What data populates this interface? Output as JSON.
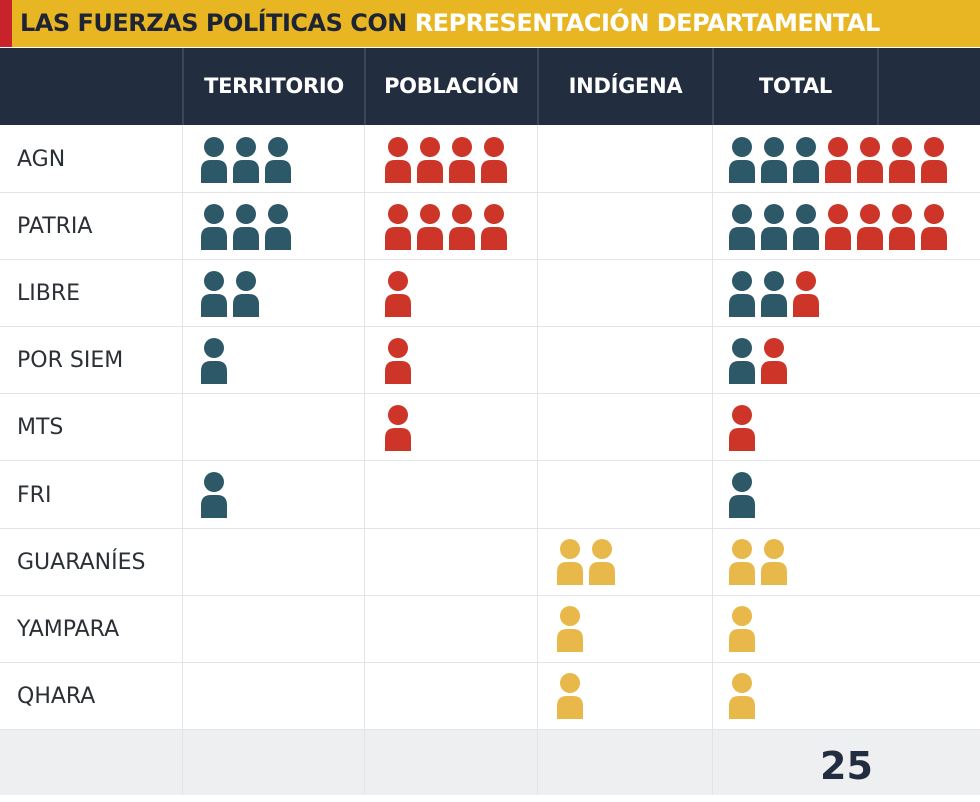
{
  "title": {
    "part1": "LAS FUERZAS POLÍTICAS CON",
    "part2": "REPRESENTACIÓN DEPARTAMENTAL"
  },
  "headers": [
    "TERRITORIO",
    "POBLACIÓN",
    "INDÍGENA",
    "TOTAL"
  ],
  "colors": {
    "territorio": "#2c5868",
    "poblacion": "#cc3528",
    "indigena": "#e9b84a",
    "header_bg": "#222d40",
    "title_bg": "#e8b623"
  },
  "rows": [
    {
      "name": "AGN",
      "territorio": 3,
      "poblacion": 4,
      "indigena": 0
    },
    {
      "name": "PATRIA",
      "territorio": 3,
      "poblacion": 4,
      "indigena": 0
    },
    {
      "name": "LIBRE",
      "territorio": 2,
      "poblacion": 1,
      "indigena": 0
    },
    {
      "name": "POR SIEM",
      "territorio": 1,
      "poblacion": 1,
      "indigena": 0
    },
    {
      "name": "MTS",
      "territorio": 0,
      "poblacion": 1,
      "indigena": 0
    },
    {
      "name": "FRI",
      "territorio": 1,
      "poblacion": 0,
      "indigena": 0
    },
    {
      "name": "GUARANÍES",
      "territorio": 0,
      "poblacion": 0,
      "indigena": 2
    },
    {
      "name": "YAMPARA",
      "territorio": 0,
      "poblacion": 0,
      "indigena": 1
    },
    {
      "name": "QHARA",
      "territorio": 0,
      "poblacion": 0,
      "indigena": 1
    }
  ],
  "grand_total": "25"
}
